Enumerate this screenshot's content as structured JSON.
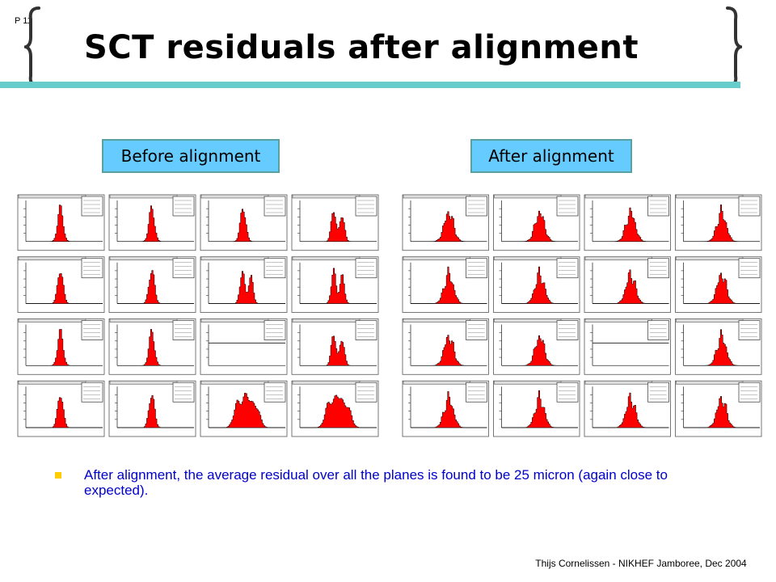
{
  "slide": {
    "page_label": "P 11",
    "title": "SCT residuals after alignment",
    "before_label": "Before alignment",
    "after_label": "After alignment",
    "bullet": "After alignment, the average residual over all the planes is found to be 25 micron (again close to expected).",
    "footer": "Thijs Cornelissen - NIKHEF Jamboree, Dec 2004"
  },
  "colors": {
    "accent_bar": "#66cccc",
    "label_fill": "#66ccff",
    "bullet_text": "#0000cc",
    "bullet_marker": "#ffcc00",
    "histogram_fill": "#ff0000"
  },
  "histogram_grids": {
    "before": [
      [
        "narrow-peak",
        "narrow-peak",
        "narrow-peak",
        "double-peak"
      ],
      [
        "narrow-peak",
        "narrow-peak",
        "double-peak",
        "double-peak"
      ],
      [
        "narrow-peak",
        "narrow-peak",
        "empty",
        "double-peak"
      ],
      [
        "narrow-peak",
        "narrow-peak",
        "wide-multi-peak",
        "wide-multi-peak"
      ]
    ],
    "after": [
      [
        "centered-peak",
        "centered-peak",
        "centered-peak",
        "centered-peak"
      ],
      [
        "centered-peak",
        "centered-peak",
        "centered-peak",
        "centered-peak"
      ],
      [
        "centered-peak",
        "centered-peak",
        "empty",
        "centered-peak"
      ],
      [
        "centered-peak",
        "centered-peak",
        "centered-peak",
        "centered-peak"
      ]
    ]
  }
}
